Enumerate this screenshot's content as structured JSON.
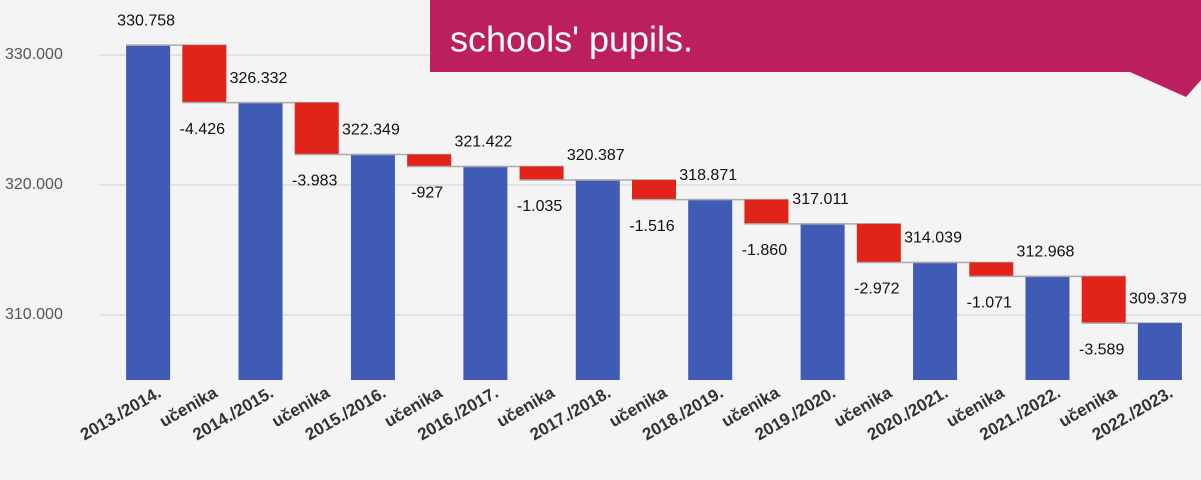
{
  "chart_data": {
    "type": "waterfall",
    "categories": [
      "2013./2014.",
      "učenika",
      "2014./2015.",
      "učenika",
      "2015./2016.",
      "učenika",
      "2016./2017.",
      "učenika",
      "2017./2018.",
      "učenika",
      "2018./2019.",
      "učenika",
      "2019./2020.",
      "učenika",
      "2020./2021.",
      "učenika",
      "2021./2022.",
      "učenika",
      "2022./2023."
    ],
    "values": [
      330758,
      -4426,
      326332,
      -3983,
      322349,
      -927,
      321422,
      -1035,
      320387,
      -1516,
      318871,
      -1860,
      317011,
      -2972,
      314039,
      -1071,
      312968,
      -3589,
      309379
    ],
    "value_labels": [
      "330.758",
      "-4.426",
      "326.332",
      "-3.983",
      "322.349",
      "-927",
      "321.422",
      "-1.035",
      "320.387",
      "-1.516",
      "318.871",
      "-1.860",
      "317.011",
      "-2.972",
      "314.039",
      "-1.071",
      "312.968",
      "-3.589",
      "309.379"
    ],
    "total_color": "#3f5bb5",
    "decrease_color": "#e2231a",
    "ylim": [
      305000,
      334000
    ],
    "yticks": [
      {
        "value": 310000,
        "label": "310.000"
      },
      {
        "value": 320000,
        "label": "320.000"
      },
      {
        "value": 330000,
        "label": "330.000"
      }
    ],
    "grid": true,
    "annotation": "schools' pupils."
  }
}
